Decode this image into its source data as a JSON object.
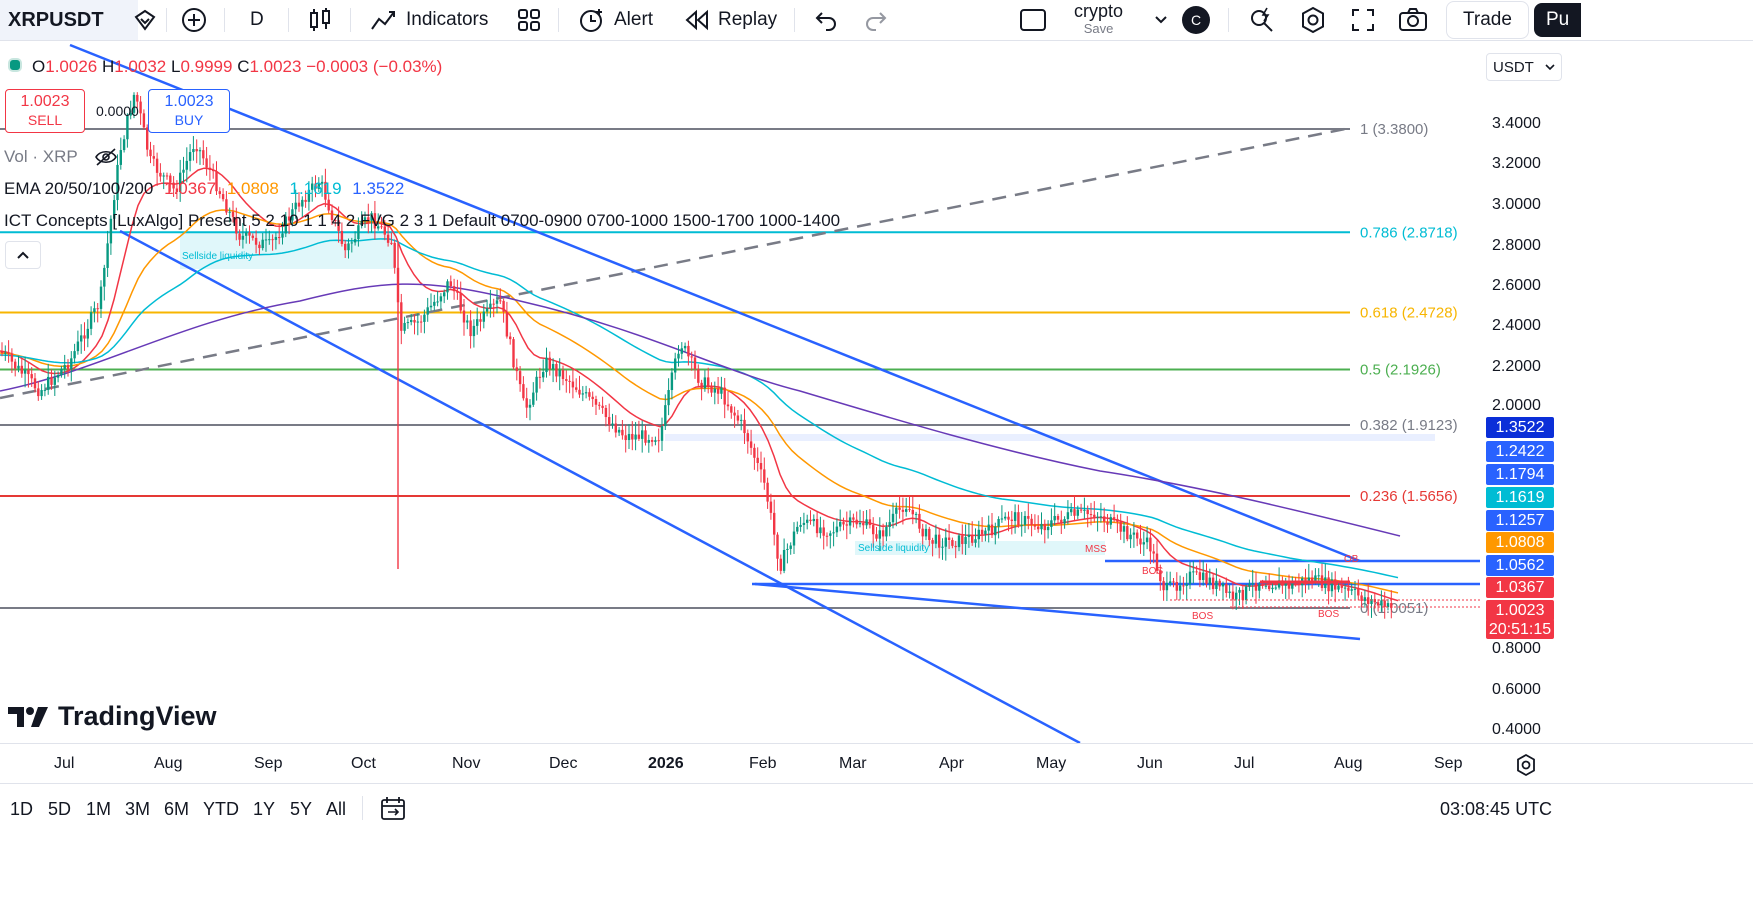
{
  "toolbar": {
    "symbol": "XRPUSDT",
    "interval": "D",
    "indicators_label": "Indicators",
    "alert_label": "Alert",
    "replay_label": "Replay",
    "layout_name": "crypto",
    "layout_save": "Save",
    "avatar_letter": "C",
    "trade_label": "Trade",
    "publish_label": "Pu"
  },
  "legend": {
    "o_label": "O",
    "o_value": "1.0026",
    "h_label": "H",
    "h_value": "1.0032",
    "l_label": "L",
    "l_value": "0.9999",
    "c_label": "C",
    "c_value": "1.0023",
    "change": "−0.0003 (−0.03%)",
    "sell_price": "1.0023",
    "sell_label": "SELL",
    "spread": "0.0000",
    "buy_price": "1.0023",
    "buy_label": "BUY",
    "vol_label": "Vol · XRP",
    "ema_label": "EMA 20/50/100/200",
    "ema_values": [
      "1.0367",
      "1.0808",
      "1.1619",
      "1.3522"
    ],
    "ict_label": "ICT Concepts [LuxAlgo] Present 5 2 10 1 1 4 2 FVG 2 3 1 Default 0700-0900 0700-1000 1500-1700 1000-1400",
    "currency": "USDT"
  },
  "colors": {
    "up": "#089981",
    "down": "#f23645",
    "channel": "#2962ff",
    "ema20": "#f23645",
    "ema50": "#ff9800",
    "ema100": "#00bcd4",
    "ema200": "#673ab7"
  },
  "chart_data": {
    "type": "line",
    "symbol": "XRPUSDT",
    "interval": "D",
    "y_ticks": [
      "3.4000",
      "3.2000",
      "3.0000",
      "2.8000",
      "2.6000",
      "2.4000",
      "2.2000",
      "2.0000",
      "0.8000",
      "0.6000",
      "0.4000"
    ],
    "x_ticks": [
      "Jul",
      "Aug",
      "Sep",
      "Oct",
      "Nov",
      "Dec",
      "2026",
      "Feb",
      "Mar",
      "Apr",
      "May",
      "Jun",
      "Jul",
      "Aug",
      "Sep"
    ],
    "fib_levels": [
      {
        "ratio": "1",
        "price": "3.3800",
        "color": "#787b86"
      },
      {
        "ratio": "0.786",
        "price": "2.8718",
        "color": "#00bcd4"
      },
      {
        "ratio": "0.618",
        "price": "2.4728",
        "color": "#f7b500"
      },
      {
        "ratio": "0.5",
        "price": "2.1926",
        "color": "#4caf50"
      },
      {
        "ratio": "0.382",
        "price": "1.9123",
        "color": "#787b86"
      },
      {
        "ratio": "0.236",
        "price": "1.5656",
        "color": "#e53935"
      },
      {
        "ratio": "0",
        "price": "1.0051",
        "color": "#787b86"
      }
    ],
    "price_tags": [
      {
        "value": "1.3522",
        "color": "#0b2fd8"
      },
      {
        "value": "1.2422",
        "color": "#2962ff"
      },
      {
        "value": "1.1794",
        "color": "#2962ff"
      },
      {
        "value": "1.1619",
        "color": "#00bcd4"
      },
      {
        "value": "1.1257",
        "color": "#2962ff"
      },
      {
        "value": "1.0808",
        "color": "#ff9800"
      },
      {
        "value": "1.0562",
        "color": "#2962ff"
      },
      {
        "value": "1.0367",
        "color": "#f23645"
      },
      {
        "value": "1.0023",
        "color": "#f23645"
      }
    ],
    "countdown": "20:51:15",
    "annotations": [
      "Sellside liquidity",
      "Sellside liquidity",
      "MSS",
      "OB",
      "BOS",
      "BOS",
      "BOS"
    ],
    "last_price": 1.0023
  },
  "bottom": {
    "ranges": [
      "1D",
      "5D",
      "1M",
      "3M",
      "6M",
      "YTD",
      "1Y",
      "5Y",
      "All"
    ],
    "clock": "03:08:45 UTC"
  },
  "watermark": "TradingView"
}
